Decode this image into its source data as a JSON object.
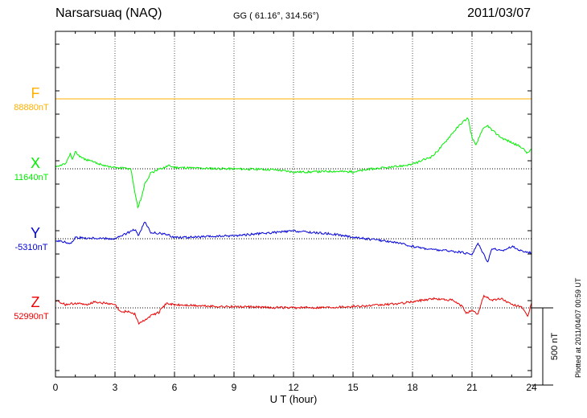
{
  "header": {
    "station": "Narsarsuaq (NAQ)",
    "coordinates": "GG ( 61.16°, 314.56°)",
    "date": "2011/03/07"
  },
  "footer": {
    "plotted": "Plotted at 2011/04/07 00:59 UT"
  },
  "chart_data": {
    "type": "line",
    "xlabel": "U T (hour)",
    "xlim": [
      0,
      24
    ],
    "x_ticks": [
      "0",
      "3",
      "6",
      "9",
      "12",
      "15",
      "18",
      "21",
      "24"
    ],
    "scale_bar_label": "500 nT",
    "scale_bar_nT": 500,
    "colors": {
      "F": "#ffb000",
      "X": "#00ee00",
      "Y": "#0000dd",
      "Z": "#ee0000",
      "axis": "#000000"
    },
    "series": [
      {
        "name": "F",
        "baseline_label": "88880nT",
        "color": "#ffb000",
        "x": [
          0,
          24
        ],
        "y": [
          0,
          0
        ]
      },
      {
        "name": "X",
        "baseline_label": "11640nT",
        "color": "#00ee00",
        "x": [
          0,
          0.5,
          0.75,
          0.85,
          1.0,
          1.3,
          2.0,
          2.8,
          3.3,
          3.8,
          4.0,
          4.15,
          4.3,
          4.5,
          4.8,
          5.3,
          5.7,
          6.0,
          7.0,
          9.0,
          11.0,
          12.0,
          13.0,
          14.0,
          15.0,
          16.0,
          17.0,
          18.0,
          19.0,
          19.5,
          20.0,
          20.5,
          20.8,
          21.0,
          21.2,
          21.5,
          21.8,
          22.0,
          22.5,
          23.0,
          23.5,
          23.8,
          24.0
        ],
        "y": [
          20,
          30,
          100,
          60,
          110,
          70,
          40,
          10,
          5,
          0,
          -150,
          -250,
          -200,
          -100,
          -30,
          0,
          20,
          10,
          5,
          0,
          -5,
          -20,
          -20,
          -15,
          -20,
          0,
          10,
          30,
          80,
          150,
          230,
          300,
          330,
          200,
          150,
          250,
          280,
          250,
          200,
          170,
          140,
          100,
          130
        ]
      },
      {
        "name": "Y",
        "baseline_label": "-5310nT",
        "color": "#0000dd",
        "x": [
          0,
          0.8,
          1.0,
          1.5,
          2.0,
          3.0,
          3.5,
          4.0,
          4.2,
          4.5,
          4.8,
          5.5,
          6.0,
          7.0,
          9.0,
          11.0,
          12.0,
          13.0,
          14.0,
          15.0,
          17.0,
          18.0,
          19.0,
          20.0,
          20.5,
          21.0,
          21.3,
          21.8,
          22.0,
          22.5,
          23.0,
          23.5,
          24.0
        ],
        "y": [
          -10,
          -30,
          10,
          5,
          5,
          0,
          30,
          60,
          20,
          110,
          40,
          30,
          10,
          10,
          20,
          40,
          50,
          40,
          30,
          10,
          -20,
          -50,
          -70,
          -80,
          -90,
          -100,
          -30,
          -150,
          -60,
          -80,
          -50,
          -80,
          -90
        ]
      },
      {
        "name": "Z",
        "baseline_label": "52990nT",
        "color": "#ee0000",
        "x": [
          0,
          0.5,
          1.0,
          1.5,
          2.0,
          3.0,
          3.3,
          3.6,
          4.0,
          4.2,
          4.5,
          4.8,
          5.2,
          5.6,
          6.0,
          8.0,
          10.0,
          12.0,
          14.0,
          16.0,
          17.5,
          18.5,
          19.0,
          20.0,
          20.5,
          20.7,
          21.0,
          21.3,
          21.6,
          22.0,
          22.5,
          23.0,
          23.5,
          23.8,
          24.0
        ],
        "y": [
          50,
          20,
          30,
          20,
          40,
          20,
          -30,
          -20,
          -40,
          -100,
          -80,
          -50,
          -30,
          30,
          20,
          10,
          5,
          0,
          5,
          15,
          30,
          50,
          60,
          50,
          10,
          -30,
          -20,
          -40,
          80,
          50,
          60,
          20,
          10,
          -60,
          30
        ]
      }
    ]
  }
}
